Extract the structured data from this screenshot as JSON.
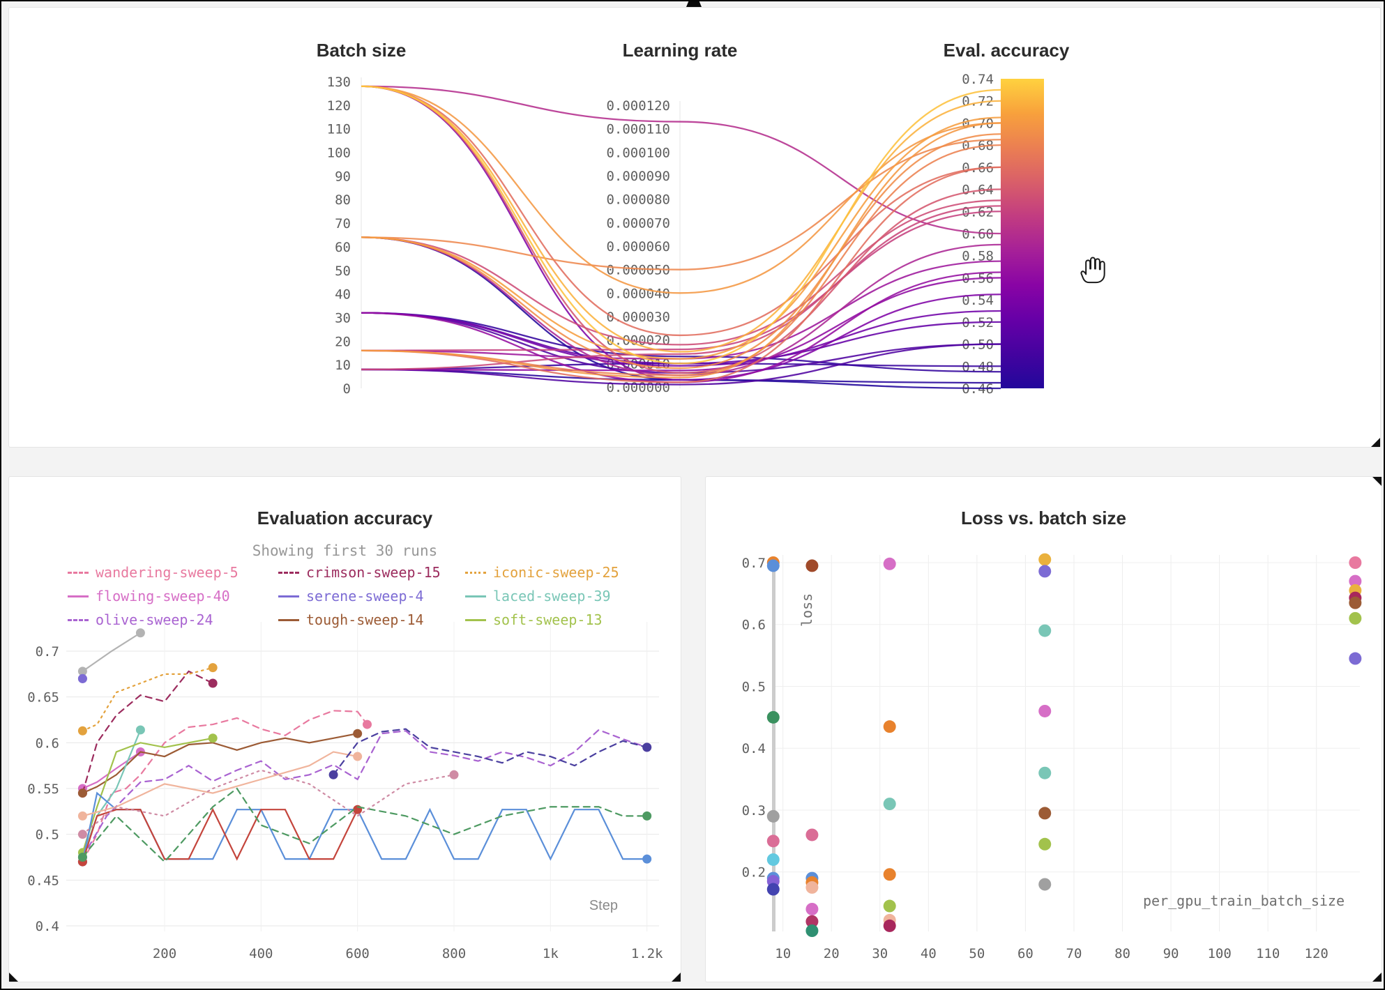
{
  "window": {
    "background": "#f3f3f3",
    "border_color": "#060606"
  },
  "cursor": {
    "icon": "open-hand-cursor"
  },
  "chart_data": [
    {
      "id": "parallel-coordinates",
      "type": "line",
      "subtype": "parallel-coordinates",
      "axes": [
        {
          "label": "Batch size",
          "min": 0,
          "max": 130,
          "ticks": [
            0,
            10,
            20,
            30,
            40,
            50,
            60,
            70,
            80,
            90,
            100,
            110,
            120,
            130
          ]
        },
        {
          "label": "Learning rate",
          "min": 0,
          "max": 0.00012,
          "ticks": [
            "0.000000",
            "0.000010",
            "0.000020",
            "0.000030",
            "0.000040",
            "0.000050",
            "0.000060",
            "0.000070",
            "0.000080",
            "0.000090",
            "0.000100",
            "0.000110",
            "0.000120"
          ]
        },
        {
          "label": "Eval. accuracy",
          "min": 0.46,
          "max": 0.74,
          "colorbar": true,
          "ticks": [
            "0.46",
            "0.48",
            "0.50",
            "0.52",
            "0.54",
            "0.56",
            "0.58",
            "0.60",
            "0.62",
            "0.64",
            "0.66",
            "0.68",
            "0.70",
            "0.72",
            "0.74"
          ]
        }
      ],
      "colormap": [
        "#22079b",
        "#44039f",
        "#6600a7",
        "#8904a5",
        "#a62098",
        "#c23c81",
        "#d95f69",
        "#eb7f52",
        "#f8a13c",
        "#ffd23f"
      ],
      "runs": [
        [
          128,
          0.000113,
          0.6
        ],
        [
          128,
          4e-05,
          0.7
        ],
        [
          128,
          2.2e-05,
          0.66
        ],
        [
          128,
          1.5e-05,
          0.72
        ],
        [
          128,
          1e-05,
          0.73
        ],
        [
          128,
          6e-06,
          0.64
        ],
        [
          128,
          3e-06,
          0.545
        ],
        [
          64,
          5e-05,
          0.685
        ],
        [
          64,
          1.2e-05,
          0.705
        ],
        [
          64,
          8e-06,
          0.69
        ],
        [
          64,
          5e-06,
          0.59
        ],
        [
          64,
          3e-06,
          0.46
        ],
        [
          64,
          1.8e-05,
          0.63
        ],
        [
          32,
          1.3e-05,
          0.475
        ],
        [
          32,
          1e-05,
          0.52
        ],
        [
          32,
          9e-06,
          0.53
        ],
        [
          32,
          6e-06,
          0.5
        ],
        [
          32,
          2e-06,
          0.565
        ],
        [
          16,
          5e-06,
          0.68
        ],
        [
          16,
          4e-06,
          0.7
        ],
        [
          16,
          2e-06,
          0.66
        ],
        [
          16,
          1.2e-05,
          0.575
        ],
        [
          16,
          1.6e-05,
          0.62
        ],
        [
          8,
          1.4e-05,
          0.625
        ],
        [
          8,
          1e-05,
          0.48
        ],
        [
          8,
          7e-06,
          0.56
        ],
        [
          8,
          3e-06,
          0.465
        ],
        [
          8,
          1e-06,
          0.5
        ]
      ]
    },
    {
      "id": "eval-accuracy",
      "type": "line",
      "title": "Evaluation accuracy",
      "subtitle": "Showing first 30 runs",
      "xlabel": "Step",
      "xlim": [
        0,
        1250
      ],
      "ylim": [
        0.4,
        0.73
      ],
      "y_ticks": [
        "0.4",
        "0.45",
        "0.5",
        "0.55",
        "0.6",
        "0.65",
        "0.7"
      ],
      "x_ticks": [
        {
          "v": 200,
          "label": "200"
        },
        {
          "v": 400,
          "label": "400"
        },
        {
          "v": 600,
          "label": "600"
        },
        {
          "v": 800,
          "label": "800"
        },
        {
          "v": 1000,
          "label": "1k"
        },
        {
          "v": 1200,
          "label": "1.2k"
        }
      ],
      "legend": [
        {
          "name": "wandering-sweep-5",
          "color": "#e8799f",
          "dash": "dashed"
        },
        {
          "name": "crimson-sweep-15",
          "color": "#9c2c5e",
          "dash": "dashed"
        },
        {
          "name": "iconic-sweep-25",
          "color": "#e3a23d",
          "dash": "dotted"
        },
        {
          "name": "flowing-sweep-40",
          "color": "#d66ec6",
          "dash": "solid"
        },
        {
          "name": "serene-sweep-4",
          "color": "#7c6bd4",
          "dash": "solid"
        },
        {
          "name": "laced-sweep-39",
          "color": "#79c6b6",
          "dash": "solid"
        },
        {
          "name": "olive-sweep-24",
          "color": "#a963d1",
          "dash": "dashed"
        },
        {
          "name": "tough-sweep-14",
          "color": "#9c5b35",
          "dash": "solid"
        },
        {
          "name": "soft-sweep-13",
          "color": "#a2c24c",
          "dash": "solid"
        }
      ],
      "series": [
        {
          "name": "",
          "color": "#b3b3b3",
          "dash": "solid",
          "steps": [
            30,
            90,
            150
          ],
          "values": [
            0.678,
            0.7,
            0.72
          ]
        },
        {
          "name": "wandering-sweep-5",
          "color": "#e8799f",
          "dash": "dashed",
          "steps": [
            30,
            60,
            90,
            120,
            150,
            200,
            250,
            300,
            350,
            400,
            450,
            500,
            550,
            600,
            620
          ],
          "values": [
            0.47,
            0.5,
            0.545,
            0.55,
            0.565,
            0.6,
            0.617,
            0.62,
            0.627,
            0.615,
            0.608,
            0.625,
            0.635,
            0.634,
            0.62
          ]
        },
        {
          "name": "flowing-sweep-40",
          "color": "#d66ec6",
          "dash": "solid",
          "steps": [
            30,
            60,
            100,
            150
          ],
          "values": [
            0.55,
            0.557,
            0.572,
            0.59
          ]
        },
        {
          "name": "olive-sweep-24",
          "color": "#a963d1",
          "dash": "dashed",
          "steps": [
            30,
            80,
            150,
            200,
            250,
            300,
            350,
            400,
            450,
            500,
            550,
            600,
            650,
            700,
            750,
            800,
            850,
            900,
            950,
            1000,
            1050,
            1100,
            1150,
            1200
          ],
          "values": [
            0.475,
            0.52,
            0.557,
            0.56,
            0.575,
            0.558,
            0.57,
            0.58,
            0.56,
            0.565,
            0.576,
            0.56,
            0.61,
            0.613,
            0.59,
            0.586,
            0.58,
            0.59,
            0.584,
            0.575,
            0.59,
            0.614,
            0.604,
            0.595
          ]
        },
        {
          "name": "crimson-sweep-15",
          "color": "#9c2c5e",
          "dash": "dashed",
          "steps": [
            30,
            60,
            100,
            150,
            200,
            250,
            300
          ],
          "values": [
            0.545,
            0.6,
            0.63,
            0.652,
            0.645,
            0.678,
            0.665
          ]
        },
        {
          "name": "serene-sweep-4",
          "color": "#7c6bd4",
          "dash": "solid",
          "steps": [
            30
          ],
          "values": [
            0.67
          ]
        },
        {
          "name": "tough-sweep-14",
          "color": "#9c5b35",
          "dash": "solid",
          "steps": [
            30,
            60,
            100,
            150,
            200,
            250,
            300,
            350,
            400,
            450,
            500,
            550,
            600
          ],
          "values": [
            0.545,
            0.552,
            0.565,
            0.59,
            0.585,
            0.598,
            0.6,
            0.592,
            0.6,
            0.605,
            0.6,
            0.605,
            0.61
          ]
        },
        {
          "name": "iconic-sweep-25",
          "color": "#e3a23d",
          "dash": "dotted",
          "steps": [
            30,
            60,
            100,
            150,
            200,
            250,
            300
          ],
          "values": [
            0.613,
            0.62,
            0.655,
            0.665,
            0.675,
            0.675,
            0.682
          ]
        },
        {
          "name": "laced-sweep-39",
          "color": "#79c6b6",
          "dash": "solid",
          "steps": [
            30,
            60,
            100,
            150
          ],
          "values": [
            0.475,
            0.52,
            0.55,
            0.614
          ]
        },
        {
          "name": "soft-sweep-13",
          "color": "#a2c24c",
          "dash": "solid",
          "steps": [
            30,
            60,
            100,
            150,
            200,
            250,
            300
          ],
          "values": [
            0.48,
            0.53,
            0.59,
            0.6,
            0.595,
            0.6,
            0.605
          ]
        },
        {
          "name": "",
          "color": "#5b8fd9",
          "dash": "solid",
          "steps": [
            30,
            60,
            100,
            150,
            200,
            250,
            300,
            350,
            400,
            450,
            500,
            550,
            600,
            650,
            700,
            750,
            800,
            850,
            900,
            950,
            1000,
            1050,
            1100,
            1150,
            1200
          ],
          "values": [
            0.47,
            0.545,
            0.527,
            0.527,
            0.473,
            0.473,
            0.473,
            0.527,
            0.527,
            0.473,
            0.473,
            0.527,
            0.527,
            0.473,
            0.473,
            0.527,
            0.473,
            0.473,
            0.527,
            0.527,
            0.473,
            0.527,
            0.527,
            0.473,
            0.473
          ]
        },
        {
          "name": "",
          "color": "#c4453c",
          "dash": "solid",
          "steps": [
            30,
            60,
            100,
            150,
            200,
            250,
            300,
            350,
            400,
            450,
            500,
            550,
            600
          ],
          "values": [
            0.47,
            0.52,
            0.527,
            0.527,
            0.473,
            0.473,
            0.527,
            0.473,
            0.527,
            0.527,
            0.473,
            0.473,
            0.527
          ]
        },
        {
          "name": "",
          "color": "#4e9a62",
          "dash": "dashed",
          "steps": [
            30,
            100,
            200,
            300,
            350,
            400,
            500,
            600,
            700,
            800,
            900,
            1000,
            1100,
            1150,
            1200
          ],
          "values": [
            0.475,
            0.52,
            0.47,
            0.53,
            0.55,
            0.51,
            0.49,
            0.53,
            0.52,
            0.5,
            0.52,
            0.53,
            0.53,
            0.52,
            0.52
          ]
        },
        {
          "name": "",
          "color": "#f0b49c",
          "dash": "solid",
          "steps": [
            30,
            100,
            200,
            300,
            400,
            500,
            550,
            600
          ],
          "values": [
            0.52,
            0.53,
            0.555,
            0.545,
            0.56,
            0.575,
            0.59,
            0.585
          ]
        },
        {
          "name": "",
          "color": "#cf8ba4",
          "dash": "dotted",
          "steps": [
            30,
            100,
            200,
            300,
            400,
            500,
            600,
            700,
            800
          ],
          "values": [
            0.5,
            0.53,
            0.52,
            0.55,
            0.57,
            0.555,
            0.52,
            0.555,
            0.565
          ]
        },
        {
          "name": "",
          "color": "#4a3f9f",
          "dash": "dashed",
          "steps": [
            550,
            600,
            650,
            700,
            750,
            800,
            850,
            900,
            950,
            1000,
            1050,
            1100,
            1150,
            1200
          ],
          "values": [
            0.565,
            0.6,
            0.612,
            0.615,
            0.595,
            0.59,
            0.585,
            0.578,
            0.59,
            0.585,
            0.575,
            0.59,
            0.602,
            0.595
          ]
        }
      ]
    },
    {
      "id": "loss-vs-batch-size",
      "type": "scatter",
      "title": "Loss vs. batch size",
      "xlabel": "per_gpu_train_batch_size",
      "ylabel": "loss",
      "xlim": [
        5,
        131
      ],
      "ylim": [
        0.08,
        0.74
      ],
      "x_ticks": [
        10,
        20,
        30,
        40,
        50,
        60,
        70,
        80,
        90,
        100,
        110,
        120
      ],
      "y_ticks": [
        "0.2",
        "0.3",
        "0.4",
        "0.5",
        "0.6",
        "0.7"
      ],
      "points": [
        {
          "x": 8,
          "y": 0.7,
          "color": "#e8822d"
        },
        {
          "x": 8,
          "y": 0.695,
          "color": "#5b8fd9"
        },
        {
          "x": 8,
          "y": 0.45,
          "color": "#3a915f"
        },
        {
          "x": 8,
          "y": 0.29,
          "color": "#a0a0a0"
        },
        {
          "x": 8,
          "y": 0.25,
          "color": "#da6d96"
        },
        {
          "x": 8,
          "y": 0.22,
          "color": "#62c9e0"
        },
        {
          "x": 8,
          "y": 0.19,
          "color": "#5b8fd9"
        },
        {
          "x": 8,
          "y": 0.185,
          "color": "#8561d6"
        },
        {
          "x": 8,
          "y": 0.172,
          "color": "#4343b0"
        },
        {
          "x": 16,
          "y": 0.695,
          "color": "#a04a2a"
        },
        {
          "x": 16,
          "y": 0.26,
          "color": "#da6d96"
        },
        {
          "x": 16,
          "y": 0.19,
          "color": "#5b8fd9"
        },
        {
          "x": 16,
          "y": 0.183,
          "color": "#e8822d"
        },
        {
          "x": 16,
          "y": 0.175,
          "color": "#f0b49c"
        },
        {
          "x": 16,
          "y": 0.14,
          "color": "#d66ec6"
        },
        {
          "x": 16,
          "y": 0.12,
          "color": "#b03565"
        },
        {
          "x": 16,
          "y": 0.105,
          "color": "#2f9072"
        },
        {
          "x": 32,
          "y": 0.698,
          "color": "#d66ec6"
        },
        {
          "x": 32,
          "y": 0.435,
          "color": "#e8822d"
        },
        {
          "x": 32,
          "y": 0.31,
          "color": "#79c6b6"
        },
        {
          "x": 32,
          "y": 0.196,
          "color": "#e8822d"
        },
        {
          "x": 32,
          "y": 0.145,
          "color": "#a2c24c"
        },
        {
          "x": 32,
          "y": 0.122,
          "color": "#f0b49c"
        },
        {
          "x": 32,
          "y": 0.113,
          "color": "#a8275c"
        },
        {
          "x": 64,
          "y": 0.705,
          "color": "#eab13d"
        },
        {
          "x": 64,
          "y": 0.686,
          "color": "#7c6bd4"
        },
        {
          "x": 64,
          "y": 0.59,
          "color": "#79c6b6"
        },
        {
          "x": 64,
          "y": 0.46,
          "color": "#d66ec6"
        },
        {
          "x": 64,
          "y": 0.36,
          "color": "#79c6b6"
        },
        {
          "x": 64,
          "y": 0.295,
          "color": "#9c5b35"
        },
        {
          "x": 64,
          "y": 0.245,
          "color": "#a2c24c"
        },
        {
          "x": 64,
          "y": 0.18,
          "color": "#a0a0a0"
        },
        {
          "x": 128,
          "y": 0.7,
          "color": "#e8799f"
        },
        {
          "x": 128,
          "y": 0.67,
          "color": "#d66ec6"
        },
        {
          "x": 128,
          "y": 0.655,
          "color": "#eab13d"
        },
        {
          "x": 128,
          "y": 0.643,
          "color": "#a8275c"
        },
        {
          "x": 128,
          "y": 0.635,
          "color": "#9c5b35"
        },
        {
          "x": 128,
          "y": 0.61,
          "color": "#a2c24c"
        },
        {
          "x": 128,
          "y": 0.545,
          "color": "#7c6bd4"
        }
      ]
    }
  ]
}
